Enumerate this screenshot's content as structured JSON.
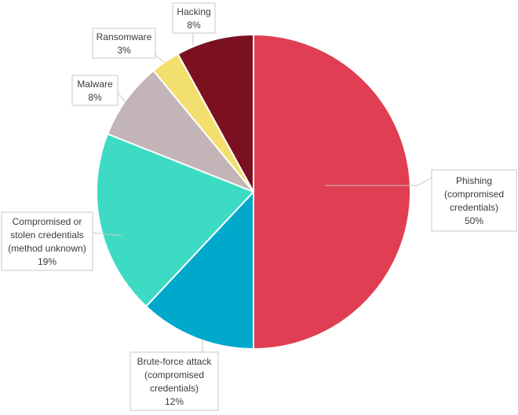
{
  "chart_data": {
    "type": "pie",
    "title": "",
    "start": "12 o'clock",
    "direction": "clockwise",
    "slices": [
      {
        "label_lines": [
          "Phishing",
          "(compromised",
          "credentials)"
        ],
        "value_label": "50%",
        "value": 50,
        "color": "#e03e52"
      },
      {
        "label_lines": [
          "Brute-force attack",
          "(compromised",
          "credentials)"
        ],
        "value_label": "12%",
        "value": 12,
        "color": "#00a8cc"
      },
      {
        "label_lines": [
          "Compromised or",
          "stolen credentials",
          "(method unknown)"
        ],
        "value_label": "19%",
        "value": 19,
        "color": "#3ddbc3"
      },
      {
        "label_lines": [
          "Malware"
        ],
        "value_label": "8%",
        "value": 8,
        "color": "#c2b4b7"
      },
      {
        "label_lines": [
          "Ransomware"
        ],
        "value_label": "3%",
        "value": 3,
        "color": "#f2df6d"
      },
      {
        "label_lines": [
          "Hacking"
        ],
        "value_label": "8%",
        "value": 8,
        "color": "#7a1020"
      }
    ]
  }
}
